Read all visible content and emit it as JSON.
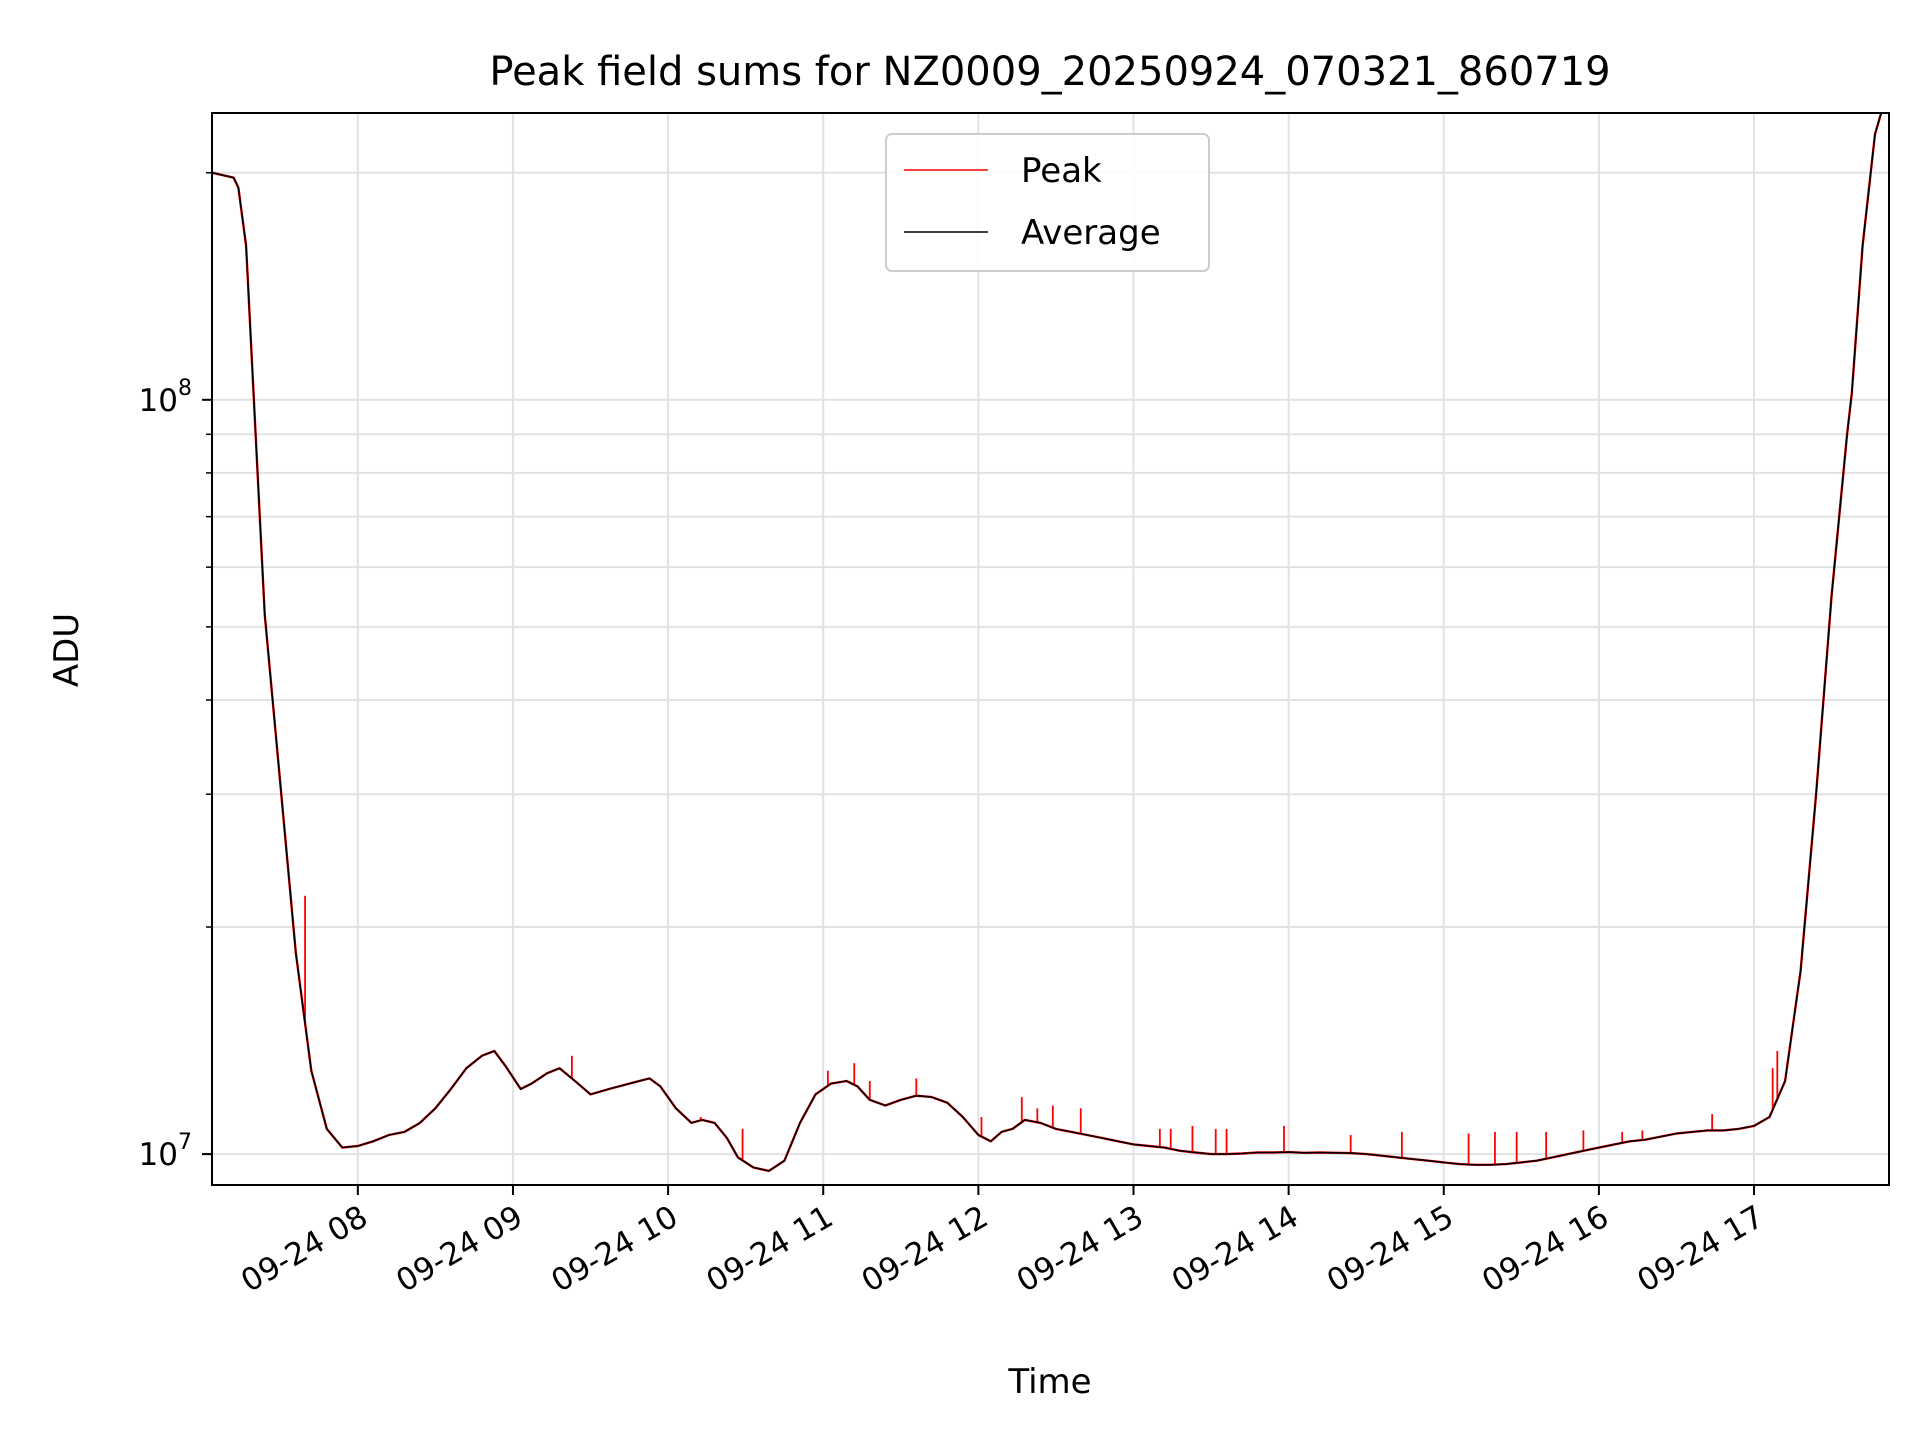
{
  "chart_data": {
    "type": "line",
    "title": "Peak field sums for NZ0009_20250924_070321_860719",
    "xlabel": "Time",
    "ylabel": "ADU",
    "yscale": "log",
    "ylim": [
      9100000,
      240000000
    ],
    "xlim_hours": [
      7.06,
      17.87
    ],
    "grid": true,
    "legend_position": "upper-center",
    "y_major_ticks": [
      {
        "value": 10000000,
        "base": "10",
        "exp": "7"
      },
      {
        "value": 100000000,
        "base": "10",
        "exp": "8"
      }
    ],
    "x_ticks": [
      {
        "hour": 8,
        "label": "09-24 08"
      },
      {
        "hour": 9,
        "label": "09-24 09"
      },
      {
        "hour": 10,
        "label": "09-24 10"
      },
      {
        "hour": 11,
        "label": "09-24 11"
      },
      {
        "hour": 12,
        "label": "09-24 12"
      },
      {
        "hour": 13,
        "label": "09-24 13"
      },
      {
        "hour": 14,
        "label": "09-24 14"
      },
      {
        "hour": 15,
        "label": "09-24 15"
      },
      {
        "hour": 16,
        "label": "09-24 16"
      },
      {
        "hour": 17,
        "label": "09-24 17"
      }
    ],
    "series": [
      {
        "name": "Peak",
        "color": "#ff0000",
        "base": "Average",
        "spikes": [
          {
            "hour": 7.66,
            "value": 22000000
          },
          {
            "hour": 9.38,
            "value": 13500000
          },
          {
            "hour": 10.21,
            "value": 11200000
          },
          {
            "hour": 10.48,
            "value": 10800000
          },
          {
            "hour": 11.03,
            "value": 12900000
          },
          {
            "hour": 11.2,
            "value": 13200000
          },
          {
            "hour": 11.3,
            "value": 12500000
          },
          {
            "hour": 11.6,
            "value": 12600000
          },
          {
            "hour": 12.02,
            "value": 11200000
          },
          {
            "hour": 12.28,
            "value": 11900000
          },
          {
            "hour": 12.38,
            "value": 11500000
          },
          {
            "hour": 12.48,
            "value": 11600000
          },
          {
            "hour": 12.66,
            "value": 11500000
          },
          {
            "hour": 13.17,
            "value": 10800000
          },
          {
            "hour": 13.24,
            "value": 10800000
          },
          {
            "hour": 13.38,
            "value": 10900000
          },
          {
            "hour": 13.53,
            "value": 10800000
          },
          {
            "hour": 13.6,
            "value": 10800000
          },
          {
            "hour": 13.97,
            "value": 10900000
          },
          {
            "hour": 14.4,
            "value": 10600000
          },
          {
            "hour": 14.73,
            "value": 10700000
          },
          {
            "hour": 15.16,
            "value": 10650000
          },
          {
            "hour": 15.33,
            "value": 10700000
          },
          {
            "hour": 15.47,
            "value": 10700000
          },
          {
            "hour": 15.66,
            "value": 10700000
          },
          {
            "hour": 15.9,
            "value": 10750000
          },
          {
            "hour": 16.15,
            "value": 10700000
          },
          {
            "hour": 16.28,
            "value": 10750000
          },
          {
            "hour": 16.73,
            "value": 11300000
          },
          {
            "hour": 17.12,
            "value": 13000000
          },
          {
            "hour": 17.15,
            "value": 13700000
          }
        ]
      },
      {
        "name": "Average",
        "color": "#000000",
        "x": [
          7.06,
          7.2,
          7.23,
          7.28,
          7.32,
          7.4,
          7.5,
          7.6,
          7.7,
          7.8,
          7.9,
          8.0,
          8.1,
          8.2,
          8.3,
          8.4,
          8.5,
          8.6,
          8.7,
          8.8,
          8.88,
          8.95,
          9.05,
          9.12,
          9.22,
          9.3,
          9.4,
          9.5,
          9.62,
          9.75,
          9.88,
          9.95,
          10.05,
          10.15,
          10.22,
          10.3,
          10.38,
          10.45,
          10.55,
          10.65,
          10.75,
          10.85,
          10.95,
          11.05,
          11.15,
          11.22,
          11.3,
          11.4,
          11.5,
          11.6,
          11.7,
          11.8,
          11.9,
          12.0,
          12.08,
          12.15,
          12.22,
          12.3,
          12.4,
          12.5,
          12.6,
          12.7,
          12.8,
          12.9,
          13.0,
          13.1,
          13.2,
          13.3,
          13.4,
          13.5,
          13.6,
          13.7,
          13.8,
          13.9,
          14.0,
          14.1,
          14.2,
          14.3,
          14.4,
          14.5,
          14.6,
          14.7,
          14.8,
          14.9,
          15.0,
          15.1,
          15.2,
          15.3,
          15.4,
          15.5,
          15.6,
          15.7,
          15.8,
          15.9,
          16.0,
          16.1,
          16.2,
          16.3,
          16.4,
          16.5,
          16.6,
          16.7,
          16.8,
          16.9,
          17.0,
          17.1,
          17.2,
          17.3,
          17.4,
          17.5,
          17.6,
          17.63,
          17.7,
          17.78,
          17.82
        ],
        "values": [
          200000000,
          197000000,
          191000000,
          160000000,
          110000000,
          52000000,
          31000000,
          18500000,
          12900000,
          10800000,
          10200000,
          10250000,
          10400000,
          10600000,
          10700000,
          11000000,
          11500000,
          12200000,
          13000000,
          13500000,
          13700000,
          13100000,
          12200000,
          12400000,
          12800000,
          13000000,
          12500000,
          12000000,
          12200000,
          12400000,
          12600000,
          12300000,
          11500000,
          11000000,
          11100000,
          11000000,
          10500000,
          9900000,
          9600000,
          9500000,
          9800000,
          11000000,
          12000000,
          12400000,
          12500000,
          12300000,
          11800000,
          11600000,
          11800000,
          11950000,
          11900000,
          11700000,
          11200000,
          10600000,
          10400000,
          10700000,
          10800000,
          11100000,
          11000000,
          10800000,
          10700000,
          10600000,
          10500000,
          10400000,
          10300000,
          10250000,
          10200000,
          10100000,
          10050000,
          10000000,
          10000000,
          10020000,
          10050000,
          10050000,
          10060000,
          10040000,
          10050000,
          10040000,
          10030000,
          10000000,
          9950000,
          9900000,
          9850000,
          9800000,
          9750000,
          9700000,
          9680000,
          9680000,
          9700000,
          9750000,
          9800000,
          9900000,
          10000000,
          10100000,
          10200000,
          10300000,
          10400000,
          10450000,
          10550000,
          10650000,
          10700000,
          10750000,
          10750000,
          10800000,
          10900000,
          11200000,
          12500000,
          17500000,
          30000000,
          55000000,
          90000000,
          102000000,
          160000000,
          225000000,
          240000000
        ]
      }
    ]
  }
}
